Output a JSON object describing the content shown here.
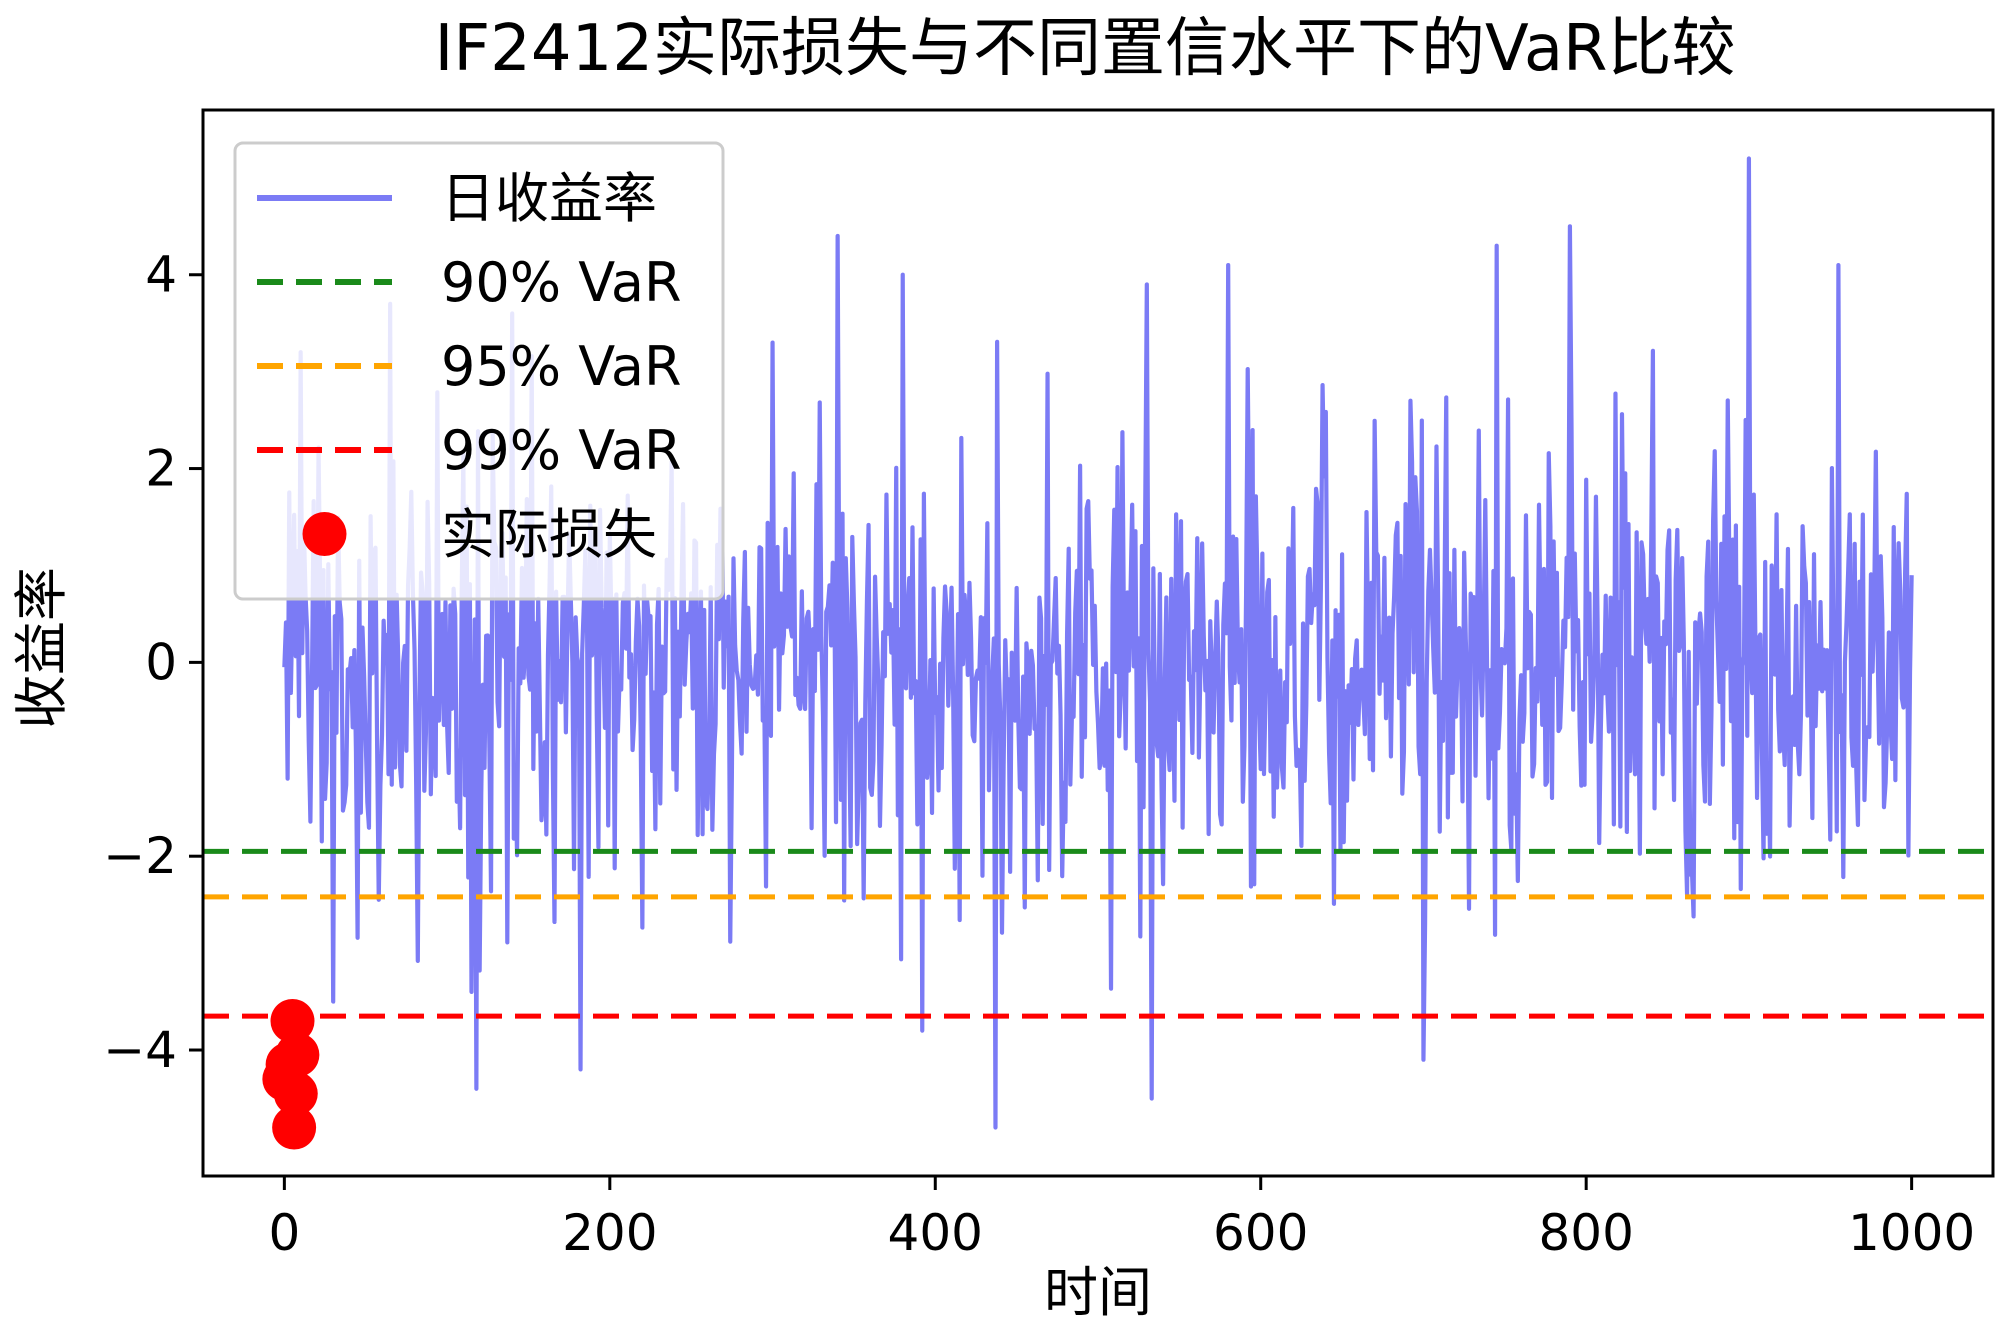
{
  "chart_data": {
    "type": "line",
    "title": "IF2412实际损失与不同置信水平下的VaR比较",
    "xlabel": "时间",
    "ylabel": "收益率",
    "xlim": [
      -50,
      1050
    ],
    "ylim": [
      -5.3,
      5.7
    ],
    "xticks": [
      0,
      200,
      400,
      600,
      800,
      1000
    ],
    "yticks": [
      -4,
      -2,
      0,
      2,
      4
    ],
    "x_tick_labels": [
      "0",
      "200",
      "400",
      "600",
      "800",
      "1000"
    ],
    "y_tick_labels": [
      "−4",
      "−2",
      "0",
      "2",
      "4"
    ],
    "grid": false,
    "legend_position": "top-left",
    "series": [
      {
        "name": "日收益率",
        "kind": "line",
        "color": "#7b7bf5",
        "x_start": 0,
        "x_end": 1000,
        "n_points": 1001,
        "extremes": [
          {
            "x": 2,
            "y": -1.2
          },
          {
            "x": 10,
            "y": 3.2
          },
          {
            "x": 30,
            "y": -3.5
          },
          {
            "x": 65,
            "y": 3.7
          },
          {
            "x": 118,
            "y": -4.4
          },
          {
            "x": 140,
            "y": 3.6
          },
          {
            "x": 182,
            "y": -4.2
          },
          {
            "x": 300,
            "y": 3.3
          },
          {
            "x": 340,
            "y": 4.4
          },
          {
            "x": 380,
            "y": 4.0
          },
          {
            "x": 392,
            "y": -3.8
          },
          {
            "x": 437,
            "y": -4.8
          },
          {
            "x": 530,
            "y": 3.9
          },
          {
            "x": 533,
            "y": -4.5
          },
          {
            "x": 580,
            "y": 4.1
          },
          {
            "x": 700,
            "y": -4.1
          },
          {
            "x": 745,
            "y": 4.3
          },
          {
            "x": 790,
            "y": 4.5
          },
          {
            "x": 900,
            "y": 5.2
          },
          {
            "x": 955,
            "y": 4.1
          },
          {
            "x": 1000,
            "y": 0.9
          }
        ]
      },
      {
        "name": "90% VaR",
        "kind": "hline",
        "y": -1.95,
        "color": "#1a8a1a",
        "dash": "dashed"
      },
      {
        "name": "95% VaR",
        "kind": "hline",
        "y": -2.42,
        "color": "#ffa500",
        "dash": "dashed"
      },
      {
        "name": "99% VaR",
        "kind": "hline",
        "y": -3.65,
        "color": "#ff0000",
        "dash": "dashed"
      },
      {
        "name": "实际损失",
        "kind": "scatter",
        "color": "#ff0000",
        "points": [
          {
            "x": 5,
            "y": -3.7
          },
          {
            "x": 8,
            "y": -4.05
          },
          {
            "x": 2,
            "y": -4.15
          },
          {
            "x": 0,
            "y": -4.3
          },
          {
            "x": 7,
            "y": -4.45
          },
          {
            "x": 6,
            "y": -4.8
          }
        ]
      }
    ]
  }
}
